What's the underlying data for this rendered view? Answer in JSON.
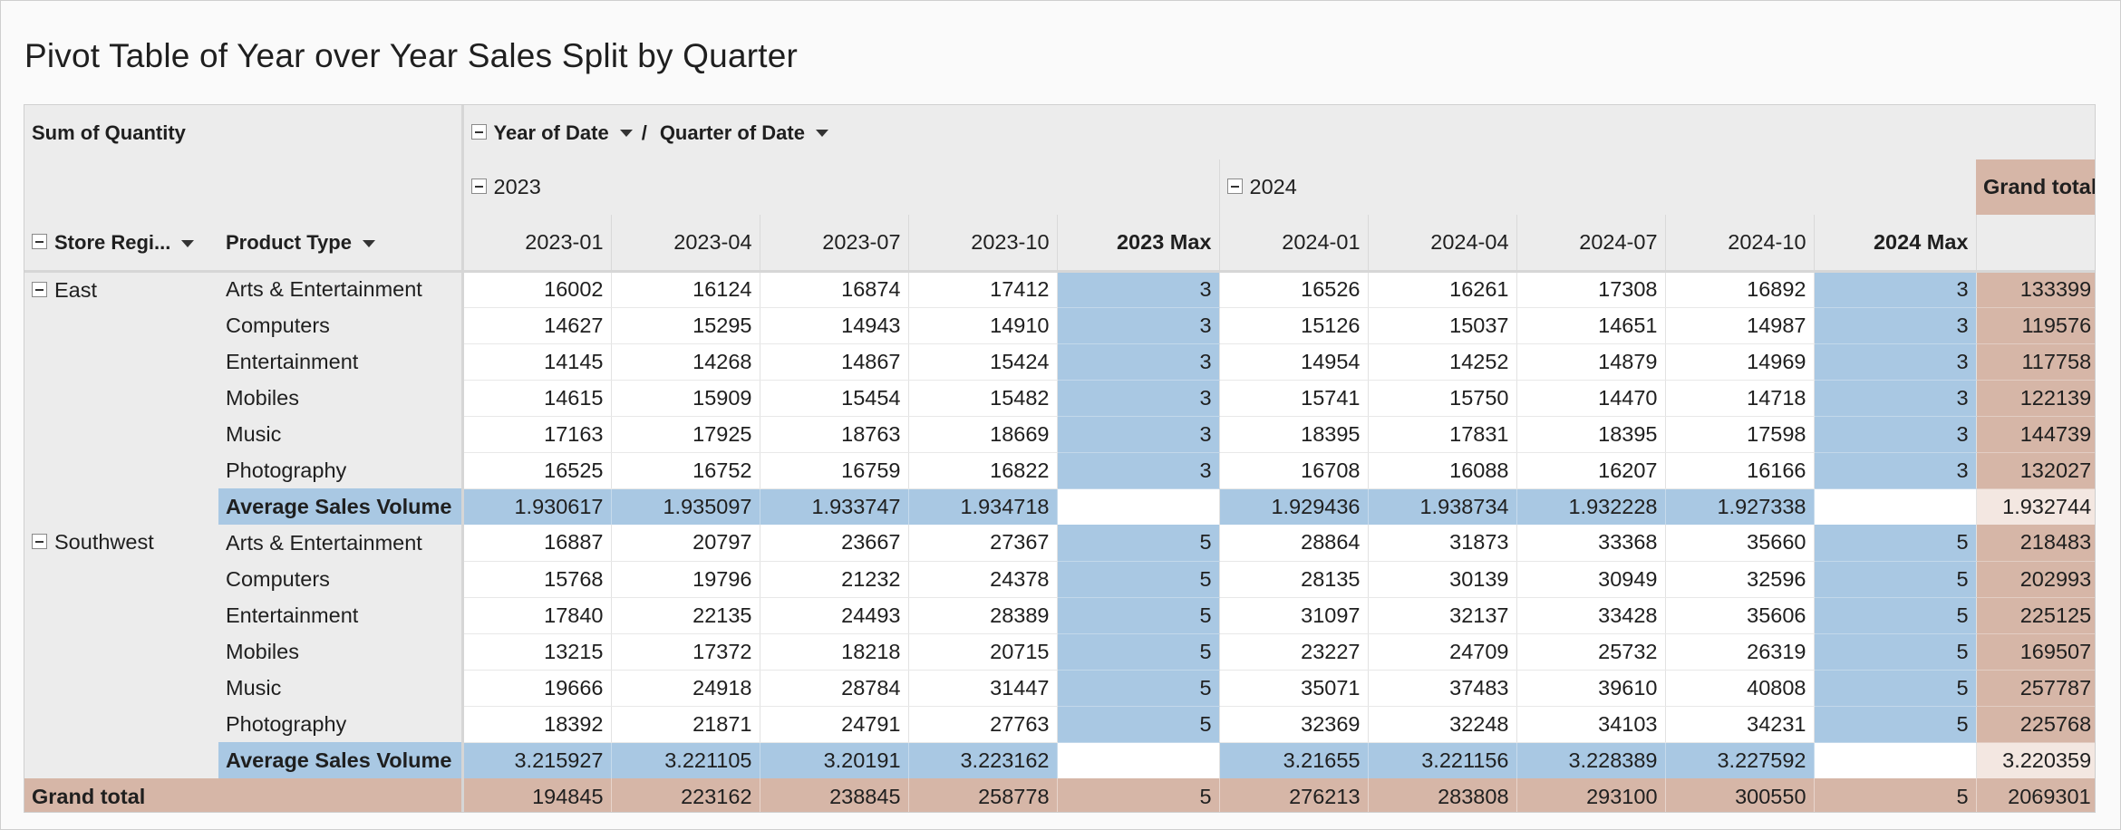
{
  "title": "Pivot Table of Year over Year Sales Split by Quarter",
  "header": {
    "measure": "Sum of Quantity",
    "col_field_1": "Year of Date",
    "col_sep": "/",
    "col_field_2": "Quarter of Date",
    "row_field_1": "Store Regi...",
    "row_field_2": "Product Type",
    "years": [
      "2023",
      "2024"
    ],
    "grand_total": "Grand total",
    "columns": [
      "2023-01",
      "2023-04",
      "2023-07",
      "2023-10",
      "2023 Max",
      "2024-01",
      "2024-04",
      "2024-07",
      "2024-10",
      "2024 Max"
    ]
  },
  "groups": [
    {
      "region": "East",
      "rows": [
        {
          "product": "Arts & Entertainment",
          "values": [
            "16002",
            "16124",
            "16874",
            "17412",
            "3",
            "16526",
            "16261",
            "17308",
            "16892",
            "3"
          ],
          "total": "133399"
        },
        {
          "product": "Computers",
          "values": [
            "14627",
            "15295",
            "14943",
            "14910",
            "3",
            "15126",
            "15037",
            "14651",
            "14987",
            "3"
          ],
          "total": "119576"
        },
        {
          "product": "Entertainment",
          "values": [
            "14145",
            "14268",
            "14867",
            "15424",
            "3",
            "14954",
            "14252",
            "14879",
            "14969",
            "3"
          ],
          "total": "117758"
        },
        {
          "product": "Mobiles",
          "values": [
            "14615",
            "15909",
            "15454",
            "15482",
            "3",
            "15741",
            "15750",
            "14470",
            "14718",
            "3"
          ],
          "total": "122139"
        },
        {
          "product": "Music",
          "values": [
            "17163",
            "17925",
            "18763",
            "18669",
            "3",
            "18395",
            "17831",
            "18395",
            "17598",
            "3"
          ],
          "total": "144739"
        },
        {
          "product": "Photography",
          "values": [
            "16525",
            "16752",
            "16759",
            "16822",
            "3",
            "16708",
            "16088",
            "16207",
            "16166",
            "3"
          ],
          "total": "132027"
        }
      ],
      "average": {
        "label": "Average Sales Volume",
        "values": [
          "1.930617",
          "1.935097",
          "1.933747",
          "1.934718",
          "",
          "1.929436",
          "1.938734",
          "1.932228",
          "1.927338",
          ""
        ],
        "total": "1.932744"
      }
    },
    {
      "region": "Southwest",
      "rows": [
        {
          "product": "Arts & Entertainment",
          "values": [
            "16887",
            "20797",
            "23667",
            "27367",
            "5",
            "28864",
            "31873",
            "33368",
            "35660",
            "5"
          ],
          "total": "218483"
        },
        {
          "product": "Computers",
          "values": [
            "15768",
            "19796",
            "21232",
            "24378",
            "5",
            "28135",
            "30139",
            "30949",
            "32596",
            "5"
          ],
          "total": "202993"
        },
        {
          "product": "Entertainment",
          "values": [
            "17840",
            "22135",
            "24493",
            "28389",
            "5",
            "31097",
            "32137",
            "33428",
            "35606",
            "5"
          ],
          "total": "225125"
        },
        {
          "product": "Mobiles",
          "values": [
            "13215",
            "17372",
            "18218",
            "20715",
            "5",
            "23227",
            "24709",
            "25732",
            "26319",
            "5"
          ],
          "total": "169507"
        },
        {
          "product": "Music",
          "values": [
            "19666",
            "24918",
            "28784",
            "31447",
            "5",
            "35071",
            "37483",
            "39610",
            "40808",
            "5"
          ],
          "total": "257787"
        },
        {
          "product": "Photography",
          "values": [
            "18392",
            "21871",
            "24791",
            "27763",
            "5",
            "32369",
            "32248",
            "34103",
            "34231",
            "5"
          ],
          "total": "225768"
        }
      ],
      "average": {
        "label": "Average Sales Volume",
        "values": [
          "3.215927",
          "3.221105",
          "3.20191",
          "3.223162",
          "",
          "3.21655",
          "3.221156",
          "3.228389",
          "3.227592",
          ""
        ],
        "total": "3.220359"
      }
    }
  ],
  "grand_total_row": {
    "label": "Grand total",
    "values": [
      "194845",
      "223162",
      "238845",
      "258778",
      "5",
      "276213",
      "283808",
      "293100",
      "300550",
      "5"
    ],
    "total": "2069301"
  }
}
